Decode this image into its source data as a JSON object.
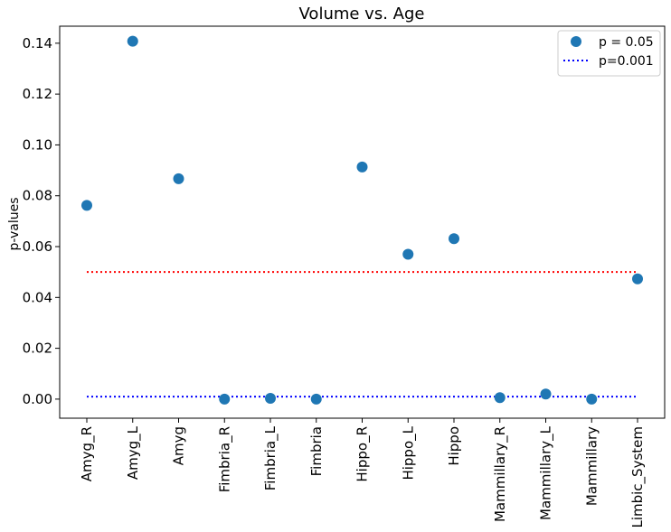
{
  "chart_data": {
    "type": "scatter",
    "title": "Volume vs. Age",
    "xlabel": "",
    "ylabel": "p-values",
    "categories": [
      "Amyg_R",
      "Amyg_L",
      "Amyg",
      "Fimbria_R",
      "Fimbria_L",
      "Fimbria",
      "Hippo_R",
      "Hippo_L",
      "Hippo",
      "Mammillary_R",
      "Mammillary_L",
      "Mammillary",
      "Limbic_System"
    ],
    "series": [
      {
        "name": "p = 0.05",
        "values": [
          0.0762,
          0.1408,
          0.0867,
          0.0,
          0.0003,
          0.0,
          0.0913,
          0.057,
          0.0631,
          0.0006,
          0.002,
          0.0,
          0.0473
        ],
        "color": "#1f77b4"
      }
    ],
    "reference_lines": [
      {
        "name": "",
        "y": 0.05,
        "color": "#ff0000",
        "style": "dotted"
      },
      {
        "name": "p=0.001",
        "y": 0.001,
        "color": "#0000ff",
        "style": "dotted"
      }
    ],
    "ylim": [
      -0.0075,
      0.1467
    ],
    "yticks": [
      0.0,
      0.02,
      0.04,
      0.06,
      0.08,
      0.1,
      0.12,
      0.14
    ],
    "ytick_labels": [
      "0.00",
      "0.02",
      "0.04",
      "0.06",
      "0.08",
      "0.10",
      "0.12",
      "0.14"
    ],
    "legend": {
      "placement": "top-right",
      "entries": [
        {
          "label": "p = 0.05",
          "marker": "circle",
          "color": "#1f77b4"
        },
        {
          "label": "p=0.001",
          "marker": "dotted-line",
          "color": "#0000ff"
        }
      ]
    },
    "grid": false
  }
}
